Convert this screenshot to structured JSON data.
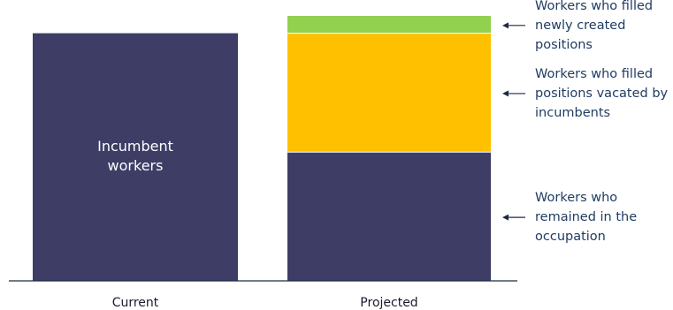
{
  "chart_data": {
    "type": "bar",
    "stacked": true,
    "categories": [
      "Current",
      "Projected"
    ],
    "series": [
      {
        "name": "Incumbent workers",
        "values": [
          100,
          null
        ],
        "color": "#3d3d66"
      },
      {
        "name": "Workers who remained in the occupation",
        "values": [
          null,
          52
        ],
        "color": "#3d3d66"
      },
      {
        "name": "Workers who filled positions vacated by incumbents",
        "values": [
          null,
          48
        ],
        "color": "#ffc000"
      },
      {
        "name": "Workers who filled newly created positions",
        "values": [
          null,
          7
        ],
        "color": "#92d050"
      }
    ],
    "ylim": [
      0,
      107
    ],
    "title": "",
    "xlabel": "",
    "ylabel": "",
    "grid": false,
    "legend": "none"
  },
  "labels": {
    "inbar_current": [
      "Incumbent",
      "workers"
    ],
    "annotations": [
      {
        "series_index": 3,
        "lines": [
          "Workers who filled",
          "newly created",
          "positions"
        ]
      },
      {
        "series_index": 2,
        "lines": [
          "Workers who filled",
          "positions vacated by",
          "incumbents"
        ]
      },
      {
        "series_index": 1,
        "lines": [
          "Workers who",
          "remained in the",
          "occupation"
        ]
      }
    ]
  },
  "colors": {
    "axis": "#1f2b44",
    "annotation_text": "#1f3d63",
    "inbar_text": "#ffffff"
  }
}
